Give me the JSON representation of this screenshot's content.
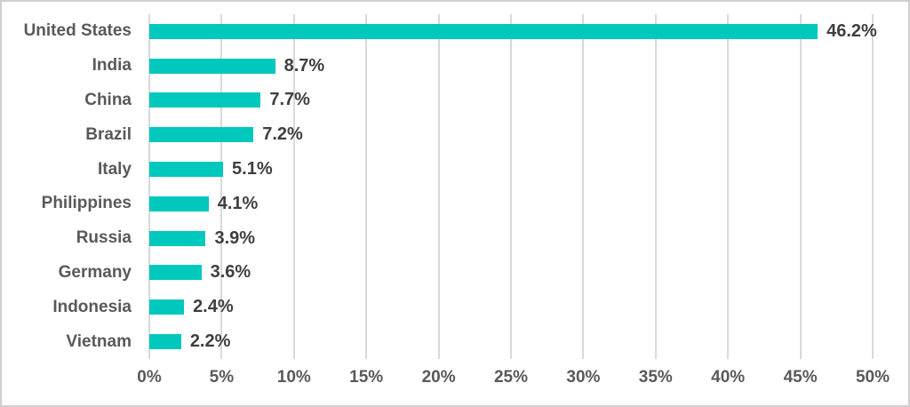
{
  "chart_data": {
    "type": "bar",
    "orientation": "horizontal",
    "title": "",
    "xlabel": "",
    "ylabel": "",
    "categories": [
      "United States",
      "India",
      "China",
      "Brazil",
      "Italy",
      "Philippines",
      "Russia",
      "Germany",
      "Indonesia",
      "Vietnam"
    ],
    "values": [
      46.2,
      8.7,
      7.7,
      7.2,
      5.1,
      4.1,
      3.9,
      3.6,
      2.4,
      2.2
    ],
    "value_labels": [
      "46.2%",
      "8.7%",
      "7.7%",
      "7.2%",
      "5.1%",
      "4.1%",
      "3.9%",
      "3.6%",
      "2.4%",
      "2.2%"
    ],
    "x_ticks": [
      "0%",
      "5%",
      "10%",
      "15%",
      "20%",
      "25%",
      "30%",
      "35%",
      "40%",
      "45%",
      "50%"
    ],
    "xlim": [
      0,
      50
    ],
    "grid": true,
    "legend": false,
    "data_labels": true
  },
  "colors": {
    "bar": "#00c8bc",
    "category_label": "#595959",
    "value_label": "#3f3f3f",
    "axis_label": "#595959",
    "gridline": "#d9d9d9",
    "border": "#d0cece",
    "background": "#ffffff"
  }
}
